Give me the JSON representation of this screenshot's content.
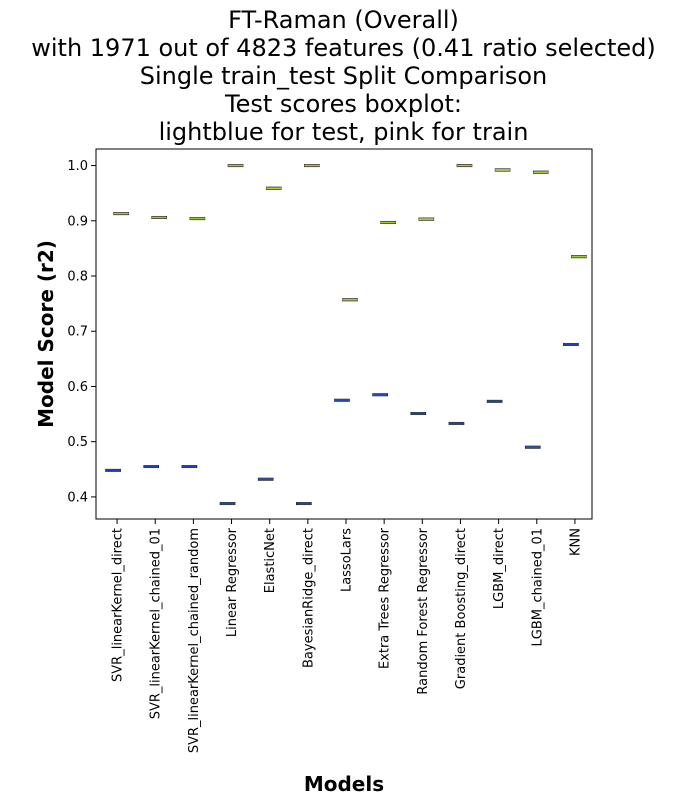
{
  "chart_data": {
    "type": "boxplot",
    "title": [
      "FT-Raman (Overall)",
      "with 1971 out of 4823 features (0.41 ratio selected)",
      "Single train_test Split Comparison",
      "Test scores boxplot:",
      "lightblue for test, pink for train"
    ],
    "xlabel": "Models",
    "ylabel": "Model Score (r2)",
    "ylim": [
      0.36,
      1.03
    ],
    "yticks": [
      "0.4",
      "0.5",
      "0.6",
      "0.7",
      "0.8",
      "0.9",
      "1.0"
    ],
    "categories": [
      "SVR_linearKernel_direct",
      "SVR_linearKernel_chained_01",
      "SVR_linearKernel_chained_random",
      "Linear Regressor",
      "ElasticNet",
      "BayesianRidge_direct",
      "LassoLars",
      "Extra Trees Regressor",
      "Random Forest Regressor",
      "Gradient Boosting_direct",
      "LGBM_direct",
      "LGBM_chained_01",
      "KNN"
    ],
    "series": [
      {
        "role": "test",
        "color": "#add8e6",
        "edge_color": "#1f3fbf",
        "values": [
          0.448,
          0.455,
          0.455,
          0.388,
          0.432,
          0.388,
          0.575,
          0.585,
          0.551,
          0.533,
          0.573,
          0.49,
          0.676
        ]
      },
      {
        "role": "train",
        "color": "#ffc0cb",
        "edge_color": "#9acd32",
        "values": [
          0.913,
          0.906,
          0.904,
          1.0,
          0.959,
          1.0,
          0.757,
          0.897,
          0.903,
          1.0,
          0.992,
          0.988,
          0.835
        ]
      }
    ]
  }
}
